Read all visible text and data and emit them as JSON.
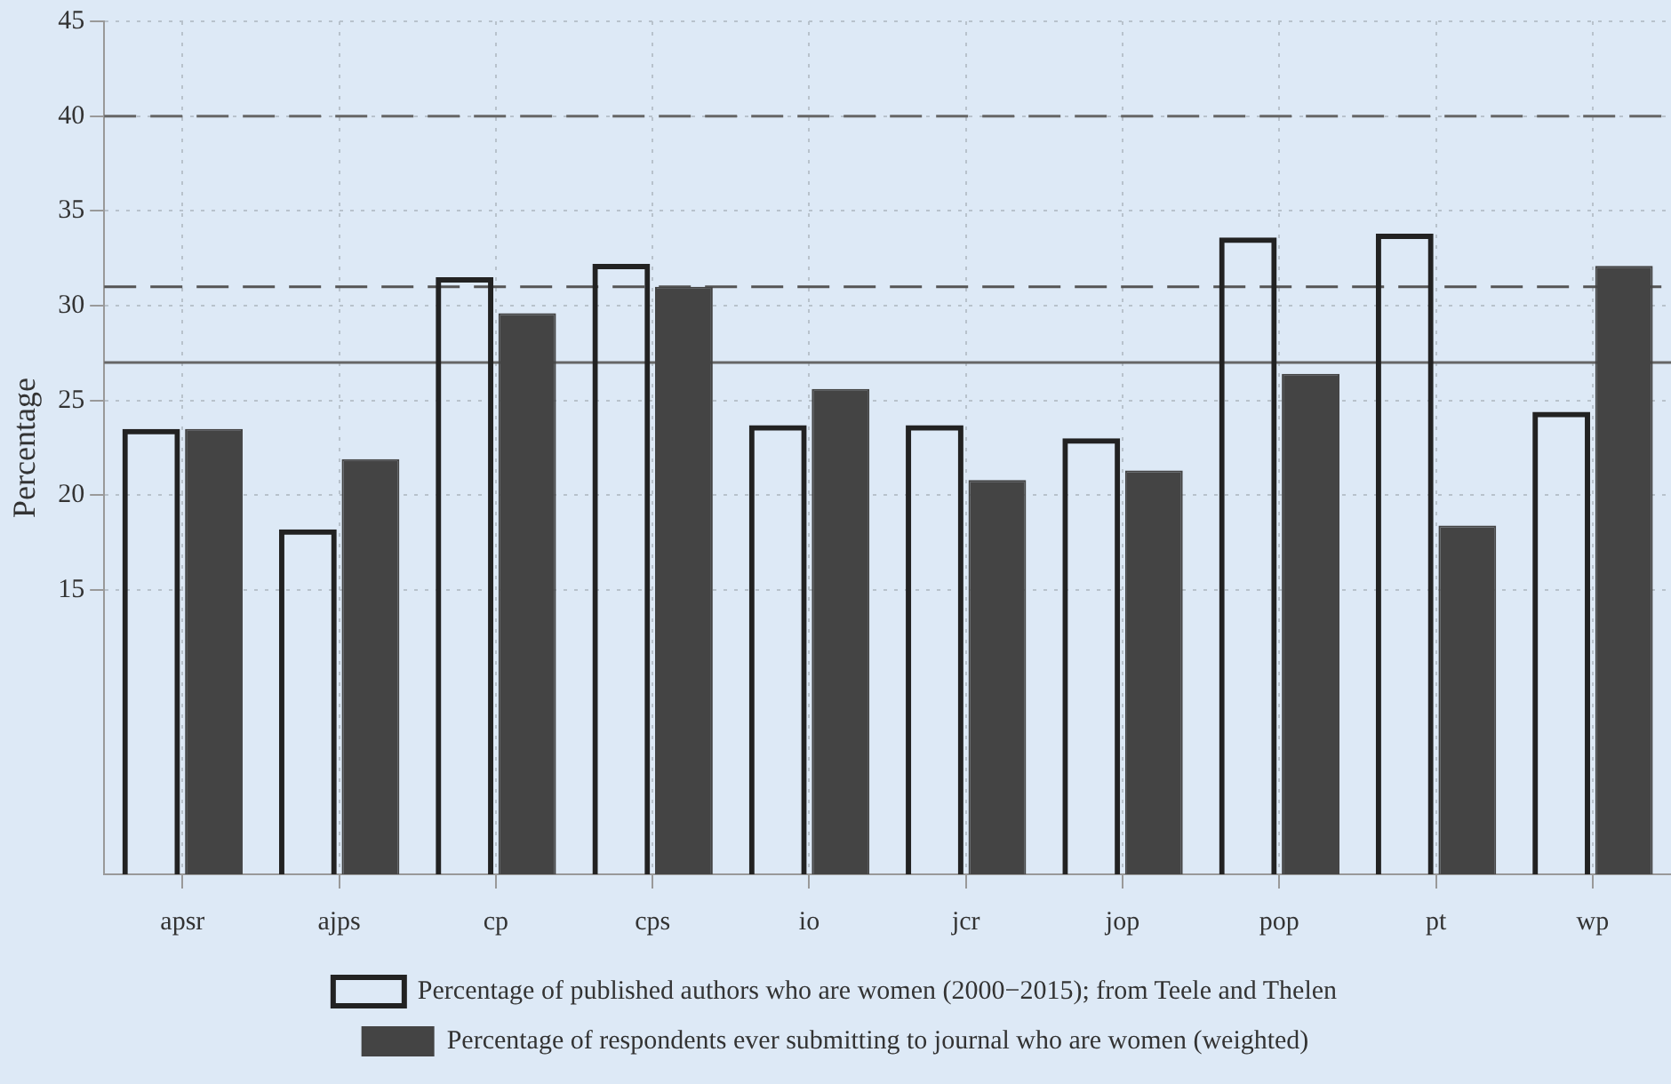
{
  "chart_data": {
    "type": "bar",
    "ylabel": "Percentage",
    "categories": [
      "apsr",
      "ajps",
      "cp",
      "cps",
      "io",
      "jcr",
      "jop",
      "pop",
      "pt",
      "wp"
    ],
    "series": [
      {
        "name": "Percentage of published authors who are women (2000−2015); from Teele and Thelen",
        "color": "#222222",
        "values": [
          23.5,
          18.2,
          31.5,
          32.2,
          23.7,
          23.7,
          23.0,
          33.6,
          33.8,
          24.4
        ]
      },
      {
        "name": "Percentage of respondents ever submitting to journal who are women (weighted)",
        "color": "#444444",
        "values": [
          23.5,
          21.9,
          29.6,
          31.0,
          25.6,
          20.8,
          21.3,
          26.4,
          18.4,
          32.1
        ]
      }
    ],
    "ylim": [
      0,
      45
    ],
    "yticks": [
      15,
      20,
      25,
      30,
      35,
      40,
      45
    ],
    "grid": true,
    "legend": "bottom",
    "ref_lines": [
      {
        "axis": "y",
        "value": 40,
        "color": "#666666",
        "line_style": "dashed"
      },
      {
        "axis": "y",
        "value": 31,
        "color": "#555555",
        "line_style": "dashed"
      },
      {
        "axis": "y",
        "value": 27,
        "color": "#666666",
        "line_style": "solid"
      }
    ]
  }
}
